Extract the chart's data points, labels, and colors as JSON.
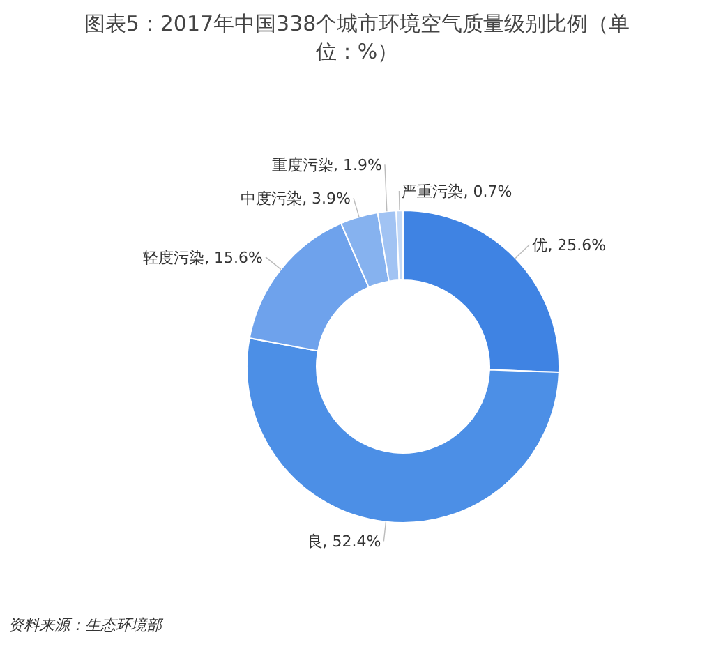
{
  "chart_data": {
    "type": "donut",
    "title": "图表5：2017年中国338个城市环境空气质量级别比例（单位：%）",
    "categories": [
      "优",
      "良",
      "轻度污染",
      "中度污染",
      "重度污染",
      "严重污染"
    ],
    "values": [
      25.6,
      52.4,
      15.6,
      3.9,
      1.9,
      0.7
    ],
    "value_labels": [
      "25.6%",
      "52.4%",
      "15.6%",
      "3.9%",
      "1.9%",
      "0.7%"
    ],
    "colors": [
      "#3f83e3",
      "#4c8fe6",
      "#6ea2ec",
      "#86b2ef",
      "#a1c3f3",
      "#c3d9f7"
    ],
    "annotations": [
      "资料来源：生态环境部"
    ]
  }
}
